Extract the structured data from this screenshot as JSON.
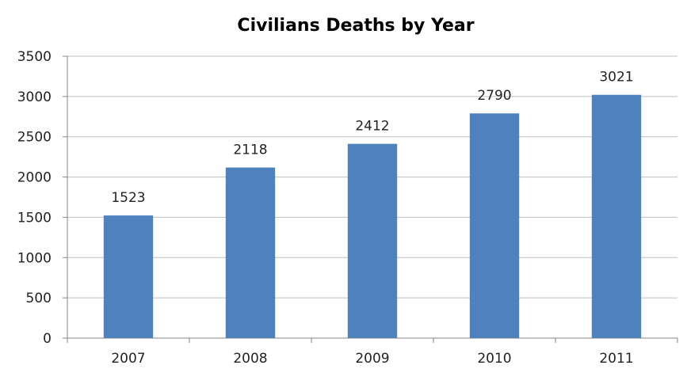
{
  "chart_data": {
    "type": "bar",
    "title": "Civilians Deaths by Year",
    "xlabel": "",
    "ylabel": "",
    "categories": [
      "2007",
      "2008",
      "2009",
      "2010",
      "2011"
    ],
    "values": [
      1523,
      2118,
      2412,
      2790,
      3021
    ],
    "data_labels": [
      "1523",
      "2118",
      "2412",
      "2790",
      "3021"
    ],
    "ylim": [
      0,
      3500
    ],
    "yticks": [
      0,
      500,
      1000,
      1500,
      2000,
      2500,
      3000,
      3500
    ],
    "ytick_labels": [
      "0",
      "500",
      "1000",
      "1500",
      "2000",
      "2500",
      "3000",
      "3500"
    ],
    "grid": true,
    "legend": "none",
    "colors": {
      "bar": "#4F81BD",
      "grid": "#BFBFBF",
      "axis": "#868686",
      "text": "#222222"
    }
  }
}
